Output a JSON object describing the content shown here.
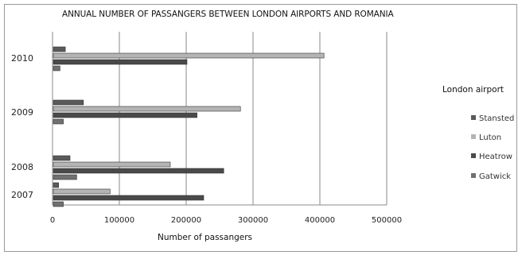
{
  "chart_data": {
    "type": "bar",
    "orientation": "horizontal",
    "title": "ANNUAL NUMBER OF PASSANGERS BETWEEN LONDON AIRPORTS AND ROMANIA",
    "xlabel": "Number of passangers",
    "ylabel": "",
    "xlim": [
      0,
      500000
    ],
    "x_ticks": [
      "0",
      "100000",
      "200000",
      "300000",
      "400000",
      "500000"
    ],
    "categories": [
      "2007",
      "2008",
      "2009",
      "2010"
    ],
    "legend_title": "London airport",
    "legend_position": "right",
    "grid": "vertical",
    "series": [
      {
        "name": "Stansted",
        "color": "#5a5a5a",
        "values": [
          8000,
          25000,
          45000,
          18000
        ]
      },
      {
        "name": "Luton",
        "color": "#b4b4b4",
        "values": [
          85000,
          175000,
          280000,
          405000
        ]
      },
      {
        "name": "Heatrow",
        "color": "#4a4a4a",
        "values": [
          225000,
          255000,
          215000,
          200000
        ]
      },
      {
        "name": "Gatwick",
        "color": "#707070",
        "values": [
          15000,
          35000,
          15000,
          10000
        ]
      }
    ]
  }
}
